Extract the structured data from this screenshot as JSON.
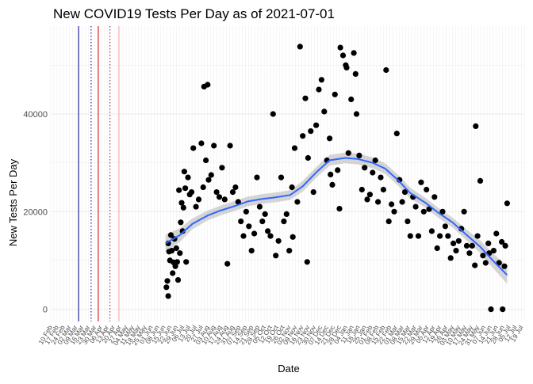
{
  "chart_data": {
    "type": "scatter",
    "title": "New COVID19 Tests Per Day as of 2021-07-01",
    "xlabel": "Date",
    "ylabel": "New Tests Per Day",
    "xlim": [
      "2020-02-08",
      "2021-07-21"
    ],
    "ylim": [
      -2500,
      58000
    ],
    "y_ticks": [
      0,
      20000,
      40000
    ],
    "x_ticks": [
      {
        "date": "2020-02-10",
        "label": "10 Feb"
      },
      {
        "date": "2020-02-17",
        "label": "17 Feb"
      },
      {
        "date": "2020-02-24",
        "label": "24 Feb"
      },
      {
        "date": "2020-03-02",
        "label": "02 Mar"
      },
      {
        "date": "2020-03-09",
        "label": "09 Mar"
      },
      {
        "date": "2020-03-16",
        "label": "16 Mar"
      },
      {
        "date": "2020-03-23",
        "label": "23 Mar"
      },
      {
        "date": "2020-03-30",
        "label": "30 Mar"
      },
      {
        "date": "2020-04-06",
        "label": "06 Apr"
      },
      {
        "date": "2020-04-13",
        "label": "13 Apr"
      },
      {
        "date": "2020-04-20",
        "label": "20 Apr"
      },
      {
        "date": "2020-04-27",
        "label": "27 Apr"
      },
      {
        "date": "2020-05-04",
        "label": "04 May"
      },
      {
        "date": "2020-05-11",
        "label": "11 May"
      },
      {
        "date": "2020-05-18",
        "label": "18 May"
      },
      {
        "date": "2020-05-25",
        "label": "25 May"
      },
      {
        "date": "2020-06-01",
        "label": "01 Jun"
      },
      {
        "date": "2020-06-08",
        "label": "08 Jun"
      },
      {
        "date": "2020-06-15",
        "label": "15 Jun"
      },
      {
        "date": "2020-06-22",
        "label": "22 Jun"
      },
      {
        "date": "2020-06-29",
        "label": "29 Jun"
      },
      {
        "date": "2020-07-06",
        "label": "06 Jul"
      },
      {
        "date": "2020-07-13",
        "label": "13 Jul"
      },
      {
        "date": "2020-07-20",
        "label": "20 Jul"
      },
      {
        "date": "2020-07-27",
        "label": "27 Jul"
      },
      {
        "date": "2020-08-03",
        "label": "03 Aug"
      },
      {
        "date": "2020-08-10",
        "label": "10 Aug"
      },
      {
        "date": "2020-08-17",
        "label": "17 Aug"
      },
      {
        "date": "2020-08-24",
        "label": "24 Aug"
      },
      {
        "date": "2020-08-31",
        "label": "31 Aug"
      },
      {
        "date": "2020-09-07",
        "label": "07 Sep"
      },
      {
        "date": "2020-09-14",
        "label": "14 Sep"
      },
      {
        "date": "2020-09-21",
        "label": "21 Sep"
      },
      {
        "date": "2020-09-28",
        "label": "28 Sep"
      },
      {
        "date": "2020-10-05",
        "label": "05 Oct"
      },
      {
        "date": "2020-10-12",
        "label": "12 Oct"
      },
      {
        "date": "2020-10-19",
        "label": "19 Oct"
      },
      {
        "date": "2020-10-26",
        "label": "26 Oct"
      },
      {
        "date": "2020-11-02",
        "label": "02 Nov"
      },
      {
        "date": "2020-11-09",
        "label": "09 Nov"
      },
      {
        "date": "2020-11-16",
        "label": "16 Nov"
      },
      {
        "date": "2020-11-23",
        "label": "23 Nov"
      },
      {
        "date": "2020-11-30",
        "label": "30 Nov"
      },
      {
        "date": "2020-12-07",
        "label": "07 Dec"
      },
      {
        "date": "2020-12-14",
        "label": "14 Dec"
      },
      {
        "date": "2020-12-21",
        "label": "21 Dec"
      },
      {
        "date": "2020-12-28",
        "label": "28 Dec"
      },
      {
        "date": "2021-01-04",
        "label": "04 Jan"
      },
      {
        "date": "2021-01-11",
        "label": "11 Jan"
      },
      {
        "date": "2021-01-18",
        "label": "18 Jan"
      },
      {
        "date": "2021-01-25",
        "label": "25 Jan"
      },
      {
        "date": "2021-02-01",
        "label": "01 Feb"
      },
      {
        "date": "2021-02-08",
        "label": "08 Feb"
      },
      {
        "date": "2021-02-15",
        "label": "15 Feb"
      },
      {
        "date": "2021-02-22",
        "label": "22 Feb"
      },
      {
        "date": "2021-03-01",
        "label": "01 Mar"
      },
      {
        "date": "2021-03-08",
        "label": "08 Mar"
      },
      {
        "date": "2021-03-15",
        "label": "15 Mar"
      },
      {
        "date": "2021-03-22",
        "label": "22 Mar"
      },
      {
        "date": "2021-03-29",
        "label": "29 Mar"
      },
      {
        "date": "2021-04-05",
        "label": "05 Apr"
      },
      {
        "date": "2021-04-12",
        "label": "12 Apr"
      },
      {
        "date": "2021-04-19",
        "label": "19 Apr"
      },
      {
        "date": "2021-04-26",
        "label": "26 Apr"
      },
      {
        "date": "2021-05-03",
        "label": "03 May"
      },
      {
        "date": "2021-05-10",
        "label": "10 May"
      },
      {
        "date": "2021-05-17",
        "label": "17 May"
      },
      {
        "date": "2021-05-24",
        "label": "24 May"
      },
      {
        "date": "2021-05-31",
        "label": "31 May"
      },
      {
        "date": "2021-06-07",
        "label": "07 Jun"
      },
      {
        "date": "2021-06-14",
        "label": "14 Jun"
      },
      {
        "date": "2021-06-21",
        "label": "21 Jun"
      },
      {
        "date": "2021-06-28",
        "label": "28 Jun"
      },
      {
        "date": "2021-07-05",
        "label": "05 Jul"
      },
      {
        "date": "2021-07-12",
        "label": "12 Jul"
      },
      {
        "date": "2021-07-19",
        "label": "19 Jul"
      }
    ],
    "grid": true,
    "vlines": [
      {
        "date": "2020-03-10",
        "color": "#00008b",
        "style": "solid"
      },
      {
        "date": "2020-03-24",
        "color": "#00008b",
        "style": "dotted"
      },
      {
        "date": "2020-04-01",
        "color": "#cc0000",
        "style": "solid"
      },
      {
        "date": "2020-04-14",
        "color": "#cc0000",
        "style": "dotted"
      },
      {
        "date": "2020-04-24",
        "color": "#f4a3a3",
        "style": "solid"
      }
    ],
    "points_color": "#000000",
    "smooth_color": "#3366ff",
    "ribbon_color": "#999999",
    "series": [
      {
        "type": "scatter",
        "x": [
          "2020-06-16",
          "2020-06-17",
          "2020-06-18",
          "2020-06-18",
          "2020-06-19",
          "2020-06-20",
          "2020-06-21",
          "2020-06-22",
          "2020-06-23",
          "2020-06-24",
          "2020-06-25",
          "2020-06-26",
          "2020-06-27",
          "2020-06-28",
          "2020-06-29",
          "2020-06-30",
          "2020-07-01",
          "2020-07-02",
          "2020-07-03",
          "2020-07-04",
          "2020-07-05",
          "2020-07-06",
          "2020-07-07",
          "2020-07-08",
          "2020-07-10",
          "2020-07-12",
          "2020-07-14",
          "2020-07-16",
          "2020-07-19",
          "2020-07-22",
          "2020-07-25",
          "2020-07-27",
          "2020-07-30",
          "2020-08-02",
          "2020-08-05",
          "2020-08-08",
          "2020-08-11",
          "2020-08-14",
          "2020-08-17",
          "2020-08-20",
          "2020-08-23",
          "2020-08-26",
          "2020-08-29",
          "2020-09-01",
          "2020-09-04",
          "2020-09-07",
          "2020-09-10",
          "2020-09-13",
          "2020-09-16",
          "2020-09-19",
          "2020-09-22",
          "2020-09-25",
          "2020-09-28",
          "2020-10-01",
          "2020-10-04",
          "2020-10-07",
          "2020-10-10",
          "2020-10-13",
          "2020-10-16",
          "2020-10-19",
          "2020-10-22",
          "2020-10-25",
          "2020-10-28",
          "2020-10-31",
          "2020-11-03",
          "2020-11-06",
          "2020-11-09",
          "2020-11-12",
          "2020-11-15",
          "2020-11-18",
          "2020-11-21",
          "2020-11-24",
          "2020-11-27",
          "2020-11-30",
          "2020-12-03",
          "2020-12-06",
          "2020-12-09",
          "2020-12-12",
          "2020-12-15",
          "2020-12-18",
          "2020-12-21",
          "2020-12-24",
          "2020-12-27",
          "2020-12-30",
          "2021-01-02",
          "2021-01-05",
          "2021-01-08",
          "2021-01-11",
          "2021-01-14",
          "2021-01-17",
          "2021-01-20",
          "2021-01-23",
          "2021-01-26",
          "2021-01-29",
          "2021-02-01",
          "2021-02-04",
          "2021-02-07",
          "2021-02-10",
          "2021-02-13",
          "2021-02-16",
          "2021-02-19",
          "2021-02-22",
          "2021-02-25",
          "2021-02-28",
          "2021-03-03",
          "2021-03-06",
          "2021-03-09",
          "2021-03-12",
          "2021-03-15",
          "2021-03-18",
          "2021-03-21",
          "2021-03-24",
          "2021-03-27",
          "2021-03-30",
          "2021-04-02",
          "2021-04-05",
          "2021-04-08",
          "2021-04-11",
          "2021-04-14",
          "2021-04-17",
          "2021-04-20",
          "2021-04-23",
          "2021-04-26",
          "2021-04-29",
          "2021-05-02",
          "2021-05-05",
          "2021-05-08",
          "2021-05-11",
          "2021-05-14",
          "2021-05-17",
          "2021-05-20",
          "2021-05-23",
          "2021-05-26",
          "2021-05-29",
          "2021-06-01",
          "2021-06-04",
          "2021-06-07",
          "2021-06-10",
          "2021-06-13",
          "2021-06-16",
          "2021-06-19",
          "2021-06-22",
          "2021-06-25",
          "2021-06-28",
          "2021-07-01",
          "2021-06-26",
          "2021-06-29",
          "2020-07-28",
          "2020-08-01",
          "2020-12-16",
          "2020-12-26",
          "2021-01-03",
          "2021-01-13",
          "2020-11-04",
          "2020-11-20",
          "2021-05-27",
          "2021-06-11"
        ],
        "y": [
          4500,
          5800,
          2700,
          13500,
          11800,
          10000,
          15200,
          12000,
          7400,
          9600,
          14400,
          8800,
          12500,
          9700,
          6000,
          24400,
          11500,
          17800,
          21800,
          16000,
          20800,
          28200,
          24800,
          9700,
          27000,
          23500,
          24000,
          33000,
          21000,
          22500,
          34000,
          25000,
          30500,
          26500,
          27500,
          33500,
          24000,
          23000,
          29000,
          22500,
          9300,
          33500,
          24000,
          25000,
          22000,
          18000,
          15000,
          20000,
          17000,
          12000,
          15500,
          27000,
          21000,
          18000,
          19500,
          16000,
          15000,
          40000,
          11000,
          14000,
          27000,
          18000,
          19500,
          12000,
          25000,
          33000,
          22000,
          53800,
          35500,
          43200,
          31000,
          36500,
          24000,
          37700,
          45000,
          47000,
          40500,
          30500,
          35000,
          25500,
          44000,
          28500,
          53600,
          52000,
          50000,
          32000,
          43000,
          52500,
          40000,
          31500,
          24500,
          29000,
          22500,
          23500,
          28000,
          30500,
          22000,
          27000,
          24500,
          49000,
          18000,
          21500,
          20000,
          36000,
          26500,
          22000,
          24000,
          18000,
          15000,
          23000,
          21000,
          15000,
          26000,
          20000,
          24500,
          20500,
          16000,
          23000,
          12500,
          15000,
          20000,
          17000,
          15000,
          10500,
          13500,
          12000,
          14000,
          16500,
          20000,
          13000,
          11500,
          13000,
          9000,
          15000,
          26300,
          11000,
          9500,
          13500,
          0,
          12000,
          15500,
          9500,
          13800,
          8800,
          21700,
          0,
          13000,
          45600,
          46000,
          27600,
          20600,
          49500,
          48200,
          14800,
          9700,
          37500,
          11500
        ],
        "name": ""
      }
    ],
    "smooth": {
      "x": [
        "2020-06-15",
        "2020-07-01",
        "2020-07-15",
        "2020-08-01",
        "2020-08-15",
        "2020-09-01",
        "2020-09-15",
        "2020-10-01",
        "2020-10-15",
        "2020-11-01",
        "2020-11-15",
        "2020-12-01",
        "2020-12-15",
        "2021-01-01",
        "2021-01-15",
        "2021-02-01",
        "2021-02-15",
        "2021-03-01",
        "2021-03-15",
        "2021-04-01",
        "2021-04-15",
        "2021-05-01",
        "2021-05-15",
        "2021-06-01",
        "2021-06-15",
        "2021-07-01"
      ],
      "y": [
        13500,
        15200,
        17500,
        19200,
        20200,
        21200,
        22100,
        22600,
        22900,
        23400,
        25200,
        28200,
        30500,
        31000,
        30800,
        30000,
        28800,
        26500,
        23800,
        21800,
        19800,
        17800,
        15500,
        12800,
        10000,
        7000
      ],
      "band": [
        1800,
        1400,
        1100,
        1000,
        1000,
        1000,
        1000,
        1000,
        1000,
        1000,
        1100,
        1100,
        1100,
        1100,
        1100,
        1100,
        1100,
        1100,
        1100,
        1000,
        1000,
        1000,
        1100,
        1300,
        1500,
        1800
      ]
    }
  }
}
